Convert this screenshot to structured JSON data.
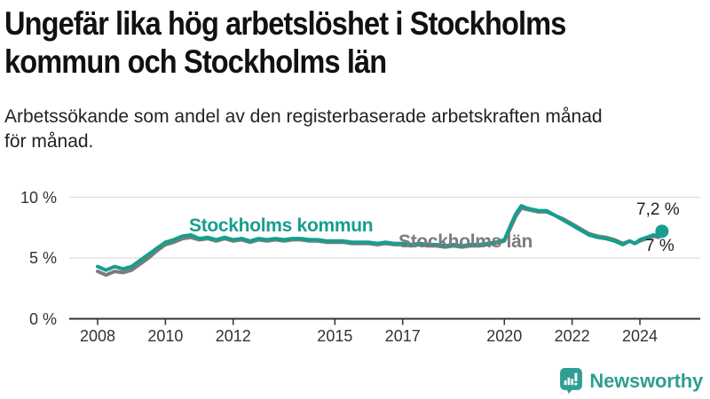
{
  "header": {
    "title": "Ungefär lika hög arbetslöshet i Stockholms\nkommun och Stockholms län",
    "subtitle": "Arbetssökande som andel av den registerbaserade arbetskraften månad\nför månad."
  },
  "chart_data": {
    "type": "line",
    "title": "Ungefär lika hög arbetslöshet i Stockholms kommun och Stockholms län",
    "subtitle": "Arbetssökande som andel av den registerbaserade arbetskraften månad för månad.",
    "xlabel": "",
    "ylabel": "",
    "unit": "%",
    "grid": "horizontal",
    "legend_position": "inline-on-lines",
    "xlim": [
      2007.2,
      2025.7
    ],
    "ylim": [
      0,
      10.5
    ],
    "x_ticks": [
      2008,
      2010,
      2012,
      2015,
      2017,
      2020,
      2022,
      2024
    ],
    "y_ticks": [
      {
        "value": 0,
        "label": "0 %"
      },
      {
        "value": 5,
        "label": "5 %"
      },
      {
        "value": 10,
        "label": "10 %"
      }
    ],
    "x": [
      2008.0,
      2008.25,
      2008.5,
      2008.75,
      2009.0,
      2009.25,
      2009.5,
      2009.75,
      2010.0,
      2010.25,
      2010.5,
      2010.75,
      2011.0,
      2011.25,
      2011.5,
      2011.75,
      2012.0,
      2012.25,
      2012.5,
      2012.75,
      2013.0,
      2013.25,
      2013.5,
      2013.75,
      2014.0,
      2014.25,
      2014.5,
      2014.75,
      2015.0,
      2015.25,
      2015.5,
      2015.75,
      2016.0,
      2016.25,
      2016.5,
      2016.75,
      2017.0,
      2017.25,
      2017.5,
      2017.75,
      2018.0,
      2018.25,
      2018.5,
      2018.75,
      2019.0,
      2019.25,
      2019.5,
      2019.75,
      2020.0,
      2020.17,
      2020.33,
      2020.5,
      2020.67,
      2020.83,
      2021.0,
      2021.25,
      2021.5,
      2021.75,
      2022.0,
      2022.25,
      2022.5,
      2022.75,
      2023.0,
      2023.25,
      2023.5,
      2023.7,
      2023.85,
      2024.0,
      2024.2,
      2024.4,
      2024.55,
      2024.65
    ],
    "series": [
      {
        "name": "Stockholms kommun",
        "color": "#169e8d",
        "end_label": "7,2 %",
        "end_value": 7.2,
        "end_dot": true,
        "values": [
          4.3,
          4.0,
          4.3,
          4.1,
          4.3,
          4.8,
          5.3,
          5.8,
          6.3,
          6.5,
          6.8,
          6.9,
          6.6,
          6.7,
          6.5,
          6.7,
          6.5,
          6.6,
          6.4,
          6.6,
          6.5,
          6.6,
          6.5,
          6.6,
          6.6,
          6.5,
          6.5,
          6.4,
          6.4,
          6.4,
          6.3,
          6.3,
          6.3,
          6.2,
          6.3,
          6.2,
          6.2,
          6.1,
          6.2,
          6.1,
          6.1,
          6.0,
          6.1,
          6.0,
          6.1,
          6.1,
          6.2,
          6.3,
          6.5,
          7.6,
          8.6,
          9.3,
          9.1,
          9.0,
          8.9,
          8.9,
          8.5,
          8.1,
          7.7,
          7.3,
          6.9,
          6.7,
          6.6,
          6.4,
          6.1,
          6.4,
          6.2,
          6.5,
          6.7,
          6.9,
          6.8,
          7.2
        ]
      },
      {
        "name": "Stockholms län",
        "color": "#7b7b7b",
        "end_label": "7 %",
        "end_value": 7.0,
        "end_dot": false,
        "values": [
          3.9,
          3.6,
          3.9,
          3.8,
          4.0,
          4.5,
          5.0,
          5.6,
          6.1,
          6.3,
          6.6,
          6.7,
          6.5,
          6.6,
          6.4,
          6.6,
          6.4,
          6.5,
          6.3,
          6.5,
          6.4,
          6.5,
          6.4,
          6.5,
          6.5,
          6.4,
          6.4,
          6.3,
          6.3,
          6.3,
          6.2,
          6.2,
          6.2,
          6.1,
          6.2,
          6.1,
          6.1,
          6.0,
          6.1,
          6.0,
          6.0,
          5.9,
          6.0,
          5.9,
          6.0,
          6.0,
          6.1,
          6.2,
          6.4,
          7.4,
          8.4,
          9.1,
          9.0,
          8.9,
          8.8,
          8.8,
          8.5,
          8.2,
          7.8,
          7.4,
          7.0,
          6.8,
          6.7,
          6.5,
          6.2,
          6.4,
          6.2,
          6.4,
          6.6,
          6.8,
          6.7,
          7.0
        ]
      }
    ]
  },
  "colors": {
    "accent_teal": "#169e8d",
    "line_gray": "#7b7b7b",
    "grid": "#dcdcdc",
    "axis": "#333333",
    "text_dark": "#111111"
  },
  "footer": {
    "brand": "Newsworthy",
    "brand_color": "#2f9e93",
    "logo_icon": "newsworthy-speech-bubble-bar-chart-icon"
  }
}
